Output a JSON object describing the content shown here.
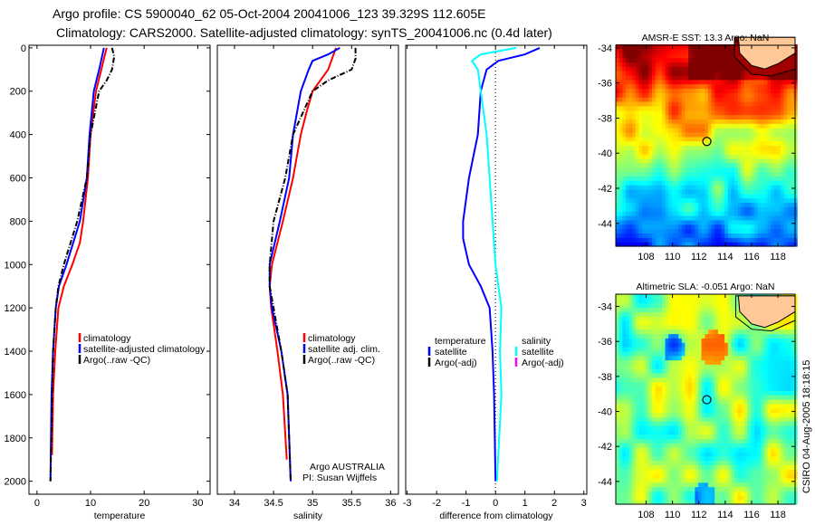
{
  "title": {
    "line1": "Argo profile: CS 5900040_62 05-Oct-2004 20041006_123 39.329S 112.605E",
    "line2": "Climatology: CARS2000. Satellite-adjusted climatology: synTS_20041006.nc (0.4d later)"
  },
  "footer": {
    "org": "Argo AUSTRALIA",
    "pi": "PI: Susan Wijffels",
    "stamp": "CSIRO 04-Aug-2005 18:18:15"
  },
  "colors": {
    "climatology": "#ff0000",
    "satellite": "#0000ff",
    "argo": "#000000",
    "sal_satellite": "#00ffff",
    "sal_argo": "#ff00ff",
    "land": "#ffc896"
  },
  "chart_data": [
    {
      "type": "line",
      "xlabel": "temperature",
      "xlim": [
        -1.5,
        32.3
      ],
      "ylim": [
        -12,
        2060
      ],
      "xticks": [
        0,
        10,
        20,
        30
      ],
      "yticks": [
        0,
        200,
        400,
        600,
        800,
        1000,
        1200,
        1400,
        1600,
        1800,
        2000
      ],
      "y_reversed": true,
      "legend": [
        "climatology",
        "satellite-adjusted climatology",
        "Argo(..raw -QC)"
      ],
      "series": [
        {
          "name": "climatology",
          "color": "#ff0000",
          "style": "solid",
          "points": [
            [
              0,
              13
            ],
            [
              50,
              12.5
            ],
            [
              100,
              12
            ],
            [
              200,
              11
            ],
            [
              400,
              10
            ],
            [
              600,
              9.5
            ],
            [
              800,
              8.6
            ],
            [
              900,
              8
            ],
            [
              1000,
              6.6
            ],
            [
              1100,
              5
            ],
            [
              1200,
              4
            ],
            [
              1400,
              3.4
            ],
            [
              1600,
              3
            ],
            [
              1880,
              2.8
            ]
          ]
        },
        {
          "name": "satellite-adjusted climatology",
          "color": "#0000ff",
          "style": "solid",
          "points": [
            [
              0,
              12.5
            ],
            [
              100,
              11.6
            ],
            [
              200,
              10.6
            ],
            [
              400,
              9.8
            ],
            [
              600,
              9.3
            ],
            [
              800,
              8
            ],
            [
              1000,
              5.5
            ],
            [
              1100,
              4.1
            ],
            [
              1200,
              3.5
            ],
            [
              1400,
              3
            ],
            [
              1600,
              2.7
            ],
            [
              2000,
              2.5
            ]
          ]
        },
        {
          "name": "Argo(..raw -QC)",
          "color": "#000000",
          "style": "dashdot",
          "points": [
            [
              0,
              14
            ],
            [
              40,
              14.4
            ],
            [
              100,
              14
            ],
            [
              150,
              13
            ],
            [
              200,
              11.6
            ],
            [
              400,
              10
            ],
            [
              600,
              9.3
            ],
            [
              800,
              7.5
            ],
            [
              1000,
              5
            ],
            [
              1100,
              4
            ],
            [
              1200,
              3.5
            ],
            [
              1400,
              3
            ],
            [
              2000,
              2.5
            ]
          ]
        }
      ]
    },
    {
      "type": "line",
      "xlabel": "salinity",
      "xlim": [
        33.78,
        36.1
      ],
      "ylim": [
        -12,
        2060
      ],
      "xticks": [
        34,
        34.5,
        35,
        35.5,
        36
      ],
      "yticks": [],
      "y_reversed": true,
      "legend": [
        "climatology",
        "satellite adj. clim.",
        "Argo(..raw -QC)"
      ],
      "series": [
        {
          "name": "climatology",
          "color": "#ff0000",
          "style": "solid",
          "points": [
            [
              0,
              35.3
            ],
            [
              100,
              35.2
            ],
            [
              200,
              35.0
            ],
            [
              300,
              34.92
            ],
            [
              400,
              34.85
            ],
            [
              600,
              34.75
            ],
            [
              800,
              34.62
            ],
            [
              1000,
              34.48
            ],
            [
              1100,
              34.45
            ],
            [
              1200,
              34.47
            ],
            [
              1400,
              34.55
            ],
            [
              1600,
              34.62
            ],
            [
              1900,
              34.67
            ]
          ]
        },
        {
          "name": "satellite adj. clim.",
          "color": "#0000ff",
          "style": "solid",
          "points": [
            [
              0,
              35.35
            ],
            [
              30,
              35.2
            ],
            [
              60,
              35.0
            ],
            [
              100,
              34.95
            ],
            [
              200,
              34.85
            ],
            [
              400,
              34.75
            ],
            [
              600,
              34.7
            ],
            [
              800,
              34.58
            ],
            [
              1000,
              34.45
            ],
            [
              1100,
              34.45
            ],
            [
              1200,
              34.48
            ],
            [
              1400,
              34.6
            ],
            [
              1600,
              34.68
            ],
            [
              2000,
              34.72
            ]
          ]
        },
        {
          "name": "Argo(..raw -QC)",
          "color": "#000000",
          "style": "dashdot",
          "points": [
            [
              0,
              35.55
            ],
            [
              50,
              35.55
            ],
            [
              100,
              35.5
            ],
            [
              150,
              35.2
            ],
            [
              200,
              35.0
            ],
            [
              400,
              34.75
            ],
            [
              600,
              34.65
            ],
            [
              800,
              34.5
            ],
            [
              1000,
              34.45
            ],
            [
              1100,
              34.45
            ],
            [
              1200,
              34.5
            ],
            [
              1400,
              34.6
            ],
            [
              1600,
              34.68
            ],
            [
              2000,
              34.72
            ]
          ]
        }
      ]
    },
    {
      "type": "line",
      "xlabel": "difference from climatology",
      "xlim": [
        -3.05,
        3.1
      ],
      "ylim": [
        -12,
        2060
      ],
      "xticks": [
        -3,
        -2,
        -1,
        0,
        1,
        2,
        3
      ],
      "yticks": [],
      "y_reversed": true,
      "zero_line": true,
      "legend_groups": [
        {
          "heading": "temperature",
          "items": [
            {
              "label": "satellite",
              "color": "#0000ff"
            },
            {
              "label": "Argo(-adj)",
              "color": "#000000"
            }
          ]
        },
        {
          "heading": "salinity",
          "items": [
            {
              "label": "satellite",
              "color": "#00ffff"
            },
            {
              "label": "Argo(-adj)",
              "color": "#ff00ff"
            }
          ]
        }
      ],
      "series": [
        {
          "name": "temperature satellite",
          "color": "#0000ff",
          "style": "solid",
          "points": [
            [
              0,
              1.5
            ],
            [
              30,
              1.0
            ],
            [
              60,
              0.1
            ],
            [
              100,
              -0.3
            ],
            [
              200,
              -0.5
            ],
            [
              400,
              -0.6
            ],
            [
              600,
              -0.9
            ],
            [
              800,
              -1.1
            ],
            [
              880,
              -1.1
            ],
            [
              1000,
              -0.9
            ],
            [
              1100,
              -0.5
            ],
            [
              1200,
              -0.2
            ],
            [
              1400,
              -0.1
            ],
            [
              1600,
              -0.05
            ],
            [
              2000,
              0
            ]
          ]
        },
        {
          "name": "salinity satellite",
          "color": "#00ffff",
          "style": "solid",
          "points": [
            [
              0,
              0.7
            ],
            [
              30,
              -0.5
            ],
            [
              60,
              -0.8
            ],
            [
              100,
              -0.6
            ],
            [
              200,
              -0.5
            ],
            [
              400,
              -0.3
            ],
            [
              600,
              -0.2
            ],
            [
              800,
              -0.1
            ],
            [
              1000,
              0
            ],
            [
              1100,
              0.1
            ],
            [
              1200,
              0.2
            ],
            [
              1400,
              0.15
            ],
            [
              1600,
              0.2
            ],
            [
              2000,
              0.05
            ]
          ]
        }
      ]
    },
    {
      "type": "heatmap",
      "title": "AMSR-E SST: 13.3 Argo: NaN",
      "field": "sst",
      "xlim": [
        105.7,
        119.3
      ],
      "ylim": [
        -45.3,
        -33.85
      ],
      "xticks": [
        108,
        110,
        112,
        114,
        116,
        118
      ],
      "yticks": [
        -34,
        -36,
        -38,
        -40,
        -42,
        -44
      ],
      "marker": {
        "lon": 112.605,
        "lat": -39.329
      }
    },
    {
      "type": "heatmap",
      "title": "Altimetric SLA: -0.051 Argo: NaN",
      "field": "sla",
      "xlim": [
        105.7,
        119.3
      ],
      "ylim": [
        -45.3,
        -33.3
      ],
      "xticks": [
        108,
        110,
        112,
        114,
        116,
        118
      ],
      "yticks": [
        -34,
        -36,
        -38,
        -40,
        -42,
        -44
      ],
      "marker": {
        "lon": 112.605,
        "lat": -39.329
      }
    }
  ]
}
